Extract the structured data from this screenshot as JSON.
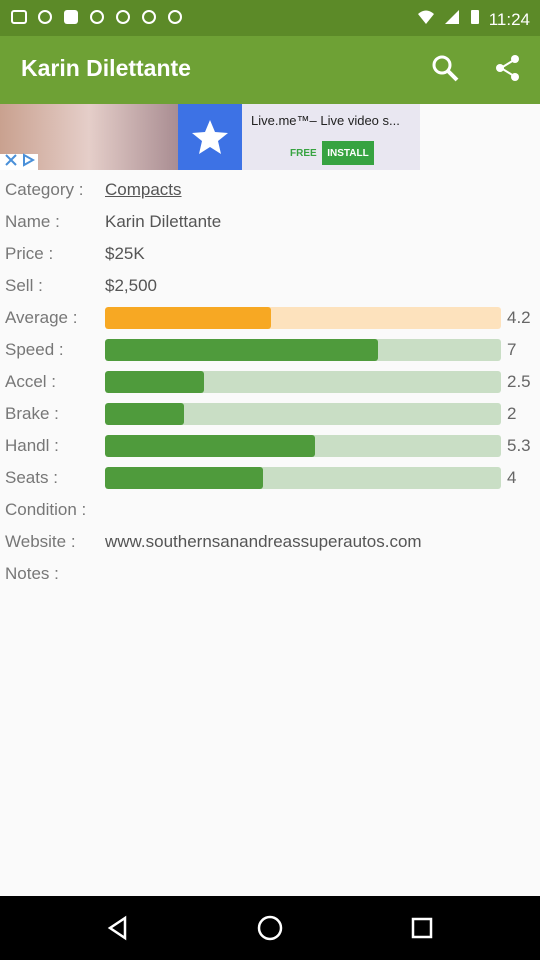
{
  "status_bar": {
    "time": "11:24",
    "icons": [
      "notification-icon",
      "notification-icon",
      "notification-icon",
      "notification-icon",
      "notification-icon",
      "notification-icon",
      "notification-icon",
      "wifi-icon",
      "signal-icon",
      "battery-icon"
    ]
  },
  "toolbar": {
    "title": "Karin Dilettante",
    "search_icon": "search-icon",
    "share_icon": "share-icon",
    "color": "#6ea135"
  },
  "ad": {
    "text": "Live.me™– Live video s...",
    "free_label": "FREE",
    "install_label": "INSTALL"
  },
  "details": {
    "category_label": "Category :",
    "category_value": "Compacts",
    "name_label": "Name :",
    "name_value": "Karin Dilettante",
    "price_label": "Price :",
    "price_value": "$25K",
    "sell_label": "Sell :",
    "sell_value": "$2,500",
    "condition_label": "Condition :",
    "website_label": "Website :",
    "website_value": "www.southernsanandreassuperautos.com",
    "notes_label": "Notes :"
  },
  "stats": [
    {
      "label": "Average :",
      "score": "4.2",
      "fill": 0.42,
      "color": "#f7a823",
      "track": "#fde2bd"
    },
    {
      "label": "Speed :",
      "score": "7",
      "fill": 0.69,
      "color": "#4f9b3c",
      "track": "#c9dec5"
    },
    {
      "label": "Accel :",
      "score": "2.5",
      "fill": 0.25,
      "color": "#4f9b3c",
      "track": "#c9dec5"
    },
    {
      "label": "Brake :",
      "score": "2",
      "fill": 0.2,
      "color": "#4f9b3c",
      "track": "#c9dec5"
    },
    {
      "label": "Handl :",
      "score": "5.3",
      "fill": 0.53,
      "color": "#4f9b3c",
      "track": "#c9dec5"
    },
    {
      "label": "Seats :",
      "score": "4",
      "fill": 0.4,
      "color": "#4f9b3c",
      "track": "#c9dec5"
    }
  ],
  "navigation": {
    "back": "back-icon",
    "home": "home-icon",
    "recents": "recents-icon"
  }
}
